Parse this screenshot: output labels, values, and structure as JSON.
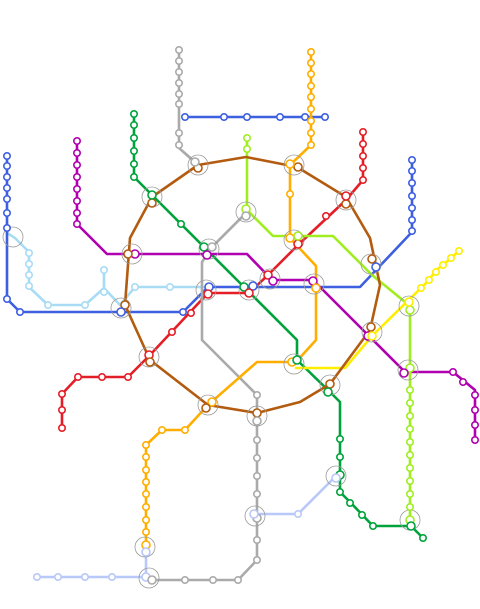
{
  "map": {
    "type": "metro-schematic",
    "lines": [
      {
        "id": "line-1",
        "color": "#e41e26"
      },
      {
        "id": "line-2",
        "color": "#00a23c"
      },
      {
        "id": "line-3",
        "color": "#3d5fe0"
      },
      {
        "id": "line-4",
        "color": "#a8dcf5"
      },
      {
        "id": "line-5",
        "color": "#b35b0e"
      },
      {
        "id": "line-6",
        "color": "#ffae00"
      },
      {
        "id": "line-7",
        "color": "#b000b0"
      },
      {
        "id": "line-8",
        "color": "#ffee00"
      },
      {
        "id": "line-9",
        "color": "#aaaaaa"
      },
      {
        "id": "line-10",
        "color": "#a0ee20"
      },
      {
        "id": "line-11",
        "color": "#b8c8f8"
      }
    ]
  }
}
